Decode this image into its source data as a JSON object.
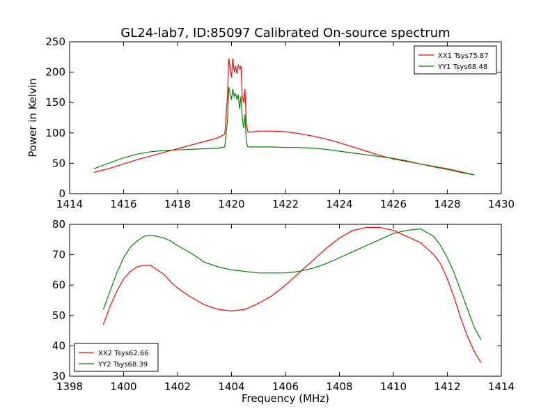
{
  "title": "GL24-lab7, ID:85097 Calibrated On-source spectrum",
  "colors": {
    "red": "#ff0000",
    "green": "#008000"
  },
  "chart_data": [
    {
      "type": "line",
      "xlabel": "",
      "ylabel": "Power in Kelvin",
      "xlim": [
        1414,
        1430
      ],
      "ylim": [
        0,
        250
      ],
      "xticks": [
        1414,
        1416,
        1418,
        1420,
        1422,
        1424,
        1426,
        1428,
        1430
      ],
      "yticks": [
        0,
        50,
        100,
        150,
        200,
        250
      ],
      "legend": "top-right",
      "series": [
        {
          "name": "XX1 Tsys75.87",
          "color": "#ff0000",
          "x": [
            1414.9,
            1415.5,
            1416.0,
            1416.5,
            1417.0,
            1417.5,
            1418.0,
            1418.5,
            1419.0,
            1419.5,
            1419.75,
            1419.85,
            1419.9,
            1420.0,
            1420.05,
            1420.1,
            1420.15,
            1420.2,
            1420.25,
            1420.3,
            1420.35,
            1420.4,
            1420.45,
            1420.5,
            1420.55,
            1420.6,
            1420.65,
            1420.8,
            1421.0,
            1421.5,
            1422.0,
            1422.5,
            1423.0,
            1423.5,
            1424.0,
            1424.5,
            1425.0,
            1425.5,
            1426.0,
            1426.5,
            1427.0,
            1427.5,
            1428.0,
            1428.5,
            1429.0
          ],
          "y": [
            35,
            42,
            49,
            56,
            62,
            68,
            74,
            80,
            86,
            92,
            98,
            160,
            222,
            192,
            222,
            200,
            210,
            198,
            212,
            205,
            210,
            160,
            150,
            172,
            115,
            103,
            101,
            102,
            103,
            103,
            102,
            99,
            95,
            90,
            84,
            77,
            70,
            63,
            57,
            53,
            49,
            45,
            41,
            36,
            31
          ]
        },
        {
          "name": "YY1 Tsys68.48",
          "color": "#008000",
          "x": [
            1414.9,
            1415.5,
            1416.0,
            1416.5,
            1417.0,
            1417.5,
            1418.0,
            1418.5,
            1419.0,
            1419.5,
            1419.75,
            1419.85,
            1419.9,
            1420.0,
            1420.05,
            1420.1,
            1420.15,
            1420.2,
            1420.25,
            1420.3,
            1420.35,
            1420.4,
            1420.45,
            1420.5,
            1420.55,
            1420.6,
            1420.65,
            1420.8,
            1421.0,
            1421.5,
            1422.0,
            1422.5,
            1423.0,
            1423.5,
            1424.0,
            1424.5,
            1425.0,
            1425.5,
            1426.0,
            1426.5,
            1427.0,
            1427.5,
            1428.0,
            1428.5,
            1429.0
          ],
          "y": [
            41,
            51,
            59,
            65,
            69,
            71,
            72,
            73,
            74,
            75,
            77,
            120,
            175,
            155,
            172,
            160,
            165,
            155,
            163,
            140,
            160,
            125,
            108,
            130,
            85,
            78,
            77,
            77,
            77,
            77,
            76,
            76,
            75,
            73,
            70,
            67,
            64,
            61,
            58,
            54,
            49,
            44,
            40,
            35,
            31
          ]
        }
      ]
    },
    {
      "type": "line",
      "xlabel": "Frequency (MHz)",
      "ylabel": "",
      "xlim": [
        1398,
        1414
      ],
      "ylim": [
        30,
        80
      ],
      "xticks": [
        1398,
        1400,
        1402,
        1404,
        1406,
        1408,
        1410,
        1412,
        1414
      ],
      "yticks": [
        30,
        40,
        50,
        60,
        70,
        80
      ],
      "legend": "bottom-left",
      "series": [
        {
          "name": "XX2 Tsys62.66",
          "color": "#ff0000",
          "x": [
            1399.25,
            1399.5,
            1399.75,
            1400.0,
            1400.25,
            1400.5,
            1400.75,
            1401.0,
            1401.25,
            1401.5,
            1401.75,
            1402.0,
            1402.5,
            1403.0,
            1403.5,
            1404.0,
            1404.5,
            1405.0,
            1405.5,
            1406.0,
            1406.5,
            1407.0,
            1407.5,
            1408.0,
            1408.5,
            1409.0,
            1409.5,
            1410.0,
            1410.5,
            1411.0,
            1411.5,
            1411.75,
            1412.0,
            1412.25,
            1412.5,
            1412.75,
            1413.0,
            1413.25
          ],
          "y": [
            47,
            53,
            58,
            62,
            64.5,
            66,
            66.5,
            66.5,
            65,
            63.5,
            61,
            59,
            56,
            53.5,
            52,
            51.5,
            52,
            54,
            56.5,
            60,
            64,
            68,
            72,
            75.5,
            78,
            79,
            79,
            78,
            76,
            74,
            70,
            67,
            62,
            56,
            49,
            43,
            38,
            34.5
          ]
        },
        {
          "name": "YY2 Tsys68.39",
          "color": "#008000",
          "x": [
            1399.25,
            1399.5,
            1399.75,
            1400.0,
            1400.25,
            1400.5,
            1400.75,
            1401.0,
            1401.25,
            1401.5,
            1401.75,
            1402.0,
            1402.5,
            1403.0,
            1403.5,
            1404.0,
            1404.5,
            1405.0,
            1405.5,
            1406.0,
            1406.5,
            1407.0,
            1407.5,
            1408.0,
            1408.5,
            1409.0,
            1409.5,
            1410.0,
            1410.5,
            1411.0,
            1411.5,
            1411.75,
            1412.0,
            1412.25,
            1412.5,
            1412.75,
            1413.0,
            1413.25
          ],
          "y": [
            52,
            58,
            64,
            69,
            72.5,
            74.5,
            76,
            76.5,
            76,
            75.5,
            74.5,
            73,
            70.5,
            67.5,
            66,
            65,
            64.5,
            64,
            64,
            64,
            64.5,
            65.5,
            67,
            69,
            71,
            73,
            75,
            77,
            78,
            78.5,
            76,
            73,
            69,
            64,
            58,
            52,
            46,
            42
          ]
        }
      ]
    }
  ]
}
